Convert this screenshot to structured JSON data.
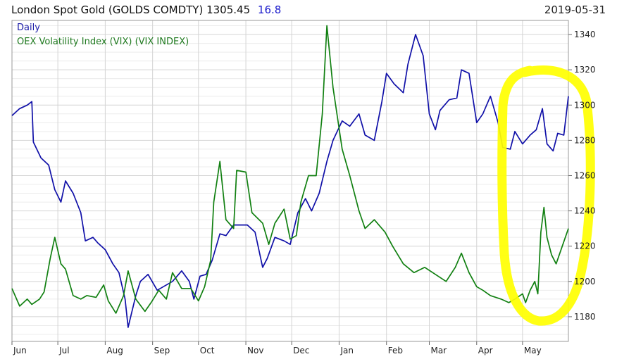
{
  "header": {
    "title": "London Spot Gold (GOLDS COMDTY)",
    "price": "1305.45",
    "change": "16.8",
    "date": "2019-05-31"
  },
  "legend": {
    "series1": "Daily",
    "series2": "OEX Volatility Index (VIX) (VIX INDEX)"
  },
  "colors": {
    "gold": "#1010a8",
    "vix": "#118011",
    "highlight": "#ffff00",
    "grid": "#d4d4d4"
  },
  "chart_data": {
    "type": "line",
    "x_tick_labels": [
      "Jun",
      "Jul",
      "Aug",
      "Sep",
      "Oct",
      "Nov",
      "Dec",
      "Jan",
      "Feb",
      "Mar",
      "Apr",
      "May"
    ],
    "x_range": [
      "2018-06-01",
      "2019-05-31"
    ],
    "y_right_ticks": [
      1180,
      1200,
      1220,
      1240,
      1260,
      1280,
      1300,
      1320,
      1340
    ],
    "ylim": [
      1166,
      1348
    ],
    "grid": true,
    "legend_position": "top-left",
    "annotation": "yellow freehand ellipse around late April–May 2019",
    "series": [
      {
        "name": "Daily",
        "color": "#1010a8",
        "points": [
          [
            "2018-06-01",
            1294
          ],
          [
            "2018-06-06",
            1298
          ],
          [
            "2018-06-11",
            1300
          ],
          [
            "2018-06-14",
            1302
          ],
          [
            "2018-06-15",
            1279
          ],
          [
            "2018-06-20",
            1270
          ],
          [
            "2018-06-25",
            1266
          ],
          [
            "2018-06-29",
            1252
          ],
          [
            "2018-07-03",
            1245
          ],
          [
            "2018-07-06",
            1257
          ],
          [
            "2018-07-11",
            1250
          ],
          [
            "2018-07-16",
            1239
          ],
          [
            "2018-07-19",
            1223
          ],
          [
            "2018-07-24",
            1225
          ],
          [
            "2018-07-27",
            1222
          ],
          [
            "2018-08-01",
            1218
          ],
          [
            "2018-08-06",
            1210
          ],
          [
            "2018-08-10",
            1205
          ],
          [
            "2018-08-14",
            1190
          ],
          [
            "2018-08-16",
            1174
          ],
          [
            "2018-08-21",
            1192
          ],
          [
            "2018-08-24",
            1200
          ],
          [
            "2018-08-29",
            1204
          ],
          [
            "2018-09-04",
            1195
          ],
          [
            "2018-09-10",
            1198
          ],
          [
            "2018-09-14",
            1200
          ],
          [
            "2018-09-20",
            1206
          ],
          [
            "2018-09-25",
            1200
          ],
          [
            "2018-09-28",
            1190
          ],
          [
            "2018-10-02",
            1203
          ],
          [
            "2018-10-06",
            1204
          ],
          [
            "2018-10-10",
            1212
          ],
          [
            "2018-10-15",
            1227
          ],
          [
            "2018-10-19",
            1226
          ],
          [
            "2018-10-24",
            1232
          ],
          [
            "2018-10-29",
            1232
          ],
          [
            "2018-11-02",
            1232
          ],
          [
            "2018-11-07",
            1228
          ],
          [
            "2018-11-12",
            1208
          ],
          [
            "2018-11-15",
            1213
          ],
          [
            "2018-11-20",
            1225
          ],
          [
            "2018-11-26",
            1223
          ],
          [
            "2018-11-30",
            1221
          ],
          [
            "2018-12-05",
            1239
          ],
          [
            "2018-12-10",
            1247
          ],
          [
            "2018-12-14",
            1240
          ],
          [
            "2018-12-19",
            1250
          ],
          [
            "2018-12-24",
            1268
          ],
          [
            "2018-12-28",
            1280
          ],
          [
            "2019-01-03",
            1291
          ],
          [
            "2019-01-08",
            1288
          ],
          [
            "2019-01-14",
            1295
          ],
          [
            "2019-01-18",
            1283
          ],
          [
            "2019-01-24",
            1280
          ],
          [
            "2019-01-29",
            1302
          ],
          [
            "2019-02-01",
            1318
          ],
          [
            "2019-02-06",
            1312
          ],
          [
            "2019-02-12",
            1307
          ],
          [
            "2019-02-15",
            1323
          ],
          [
            "2019-02-20",
            1340
          ],
          [
            "2019-02-25",
            1328
          ],
          [
            "2019-03-01",
            1295
          ],
          [
            "2019-03-05",
            1286
          ],
          [
            "2019-03-08",
            1297
          ],
          [
            "2019-03-14",
            1303
          ],
          [
            "2019-03-19",
            1304
          ],
          [
            "2019-03-22",
            1320
          ],
          [
            "2019-03-27",
            1318
          ],
          [
            "2019-04-01",
            1290
          ],
          [
            "2019-04-05",
            1295
          ],
          [
            "2019-04-10",
            1305
          ],
          [
            "2019-04-15",
            1290
          ],
          [
            "2019-04-18",
            1276
          ],
          [
            "2019-04-23",
            1275
          ],
          [
            "2019-04-26",
            1285
          ],
          [
            "2019-05-01",
            1278
          ],
          [
            "2019-05-06",
            1283
          ],
          [
            "2019-05-10",
            1286
          ],
          [
            "2019-05-14",
            1298
          ],
          [
            "2019-05-17",
            1278
          ],
          [
            "2019-05-21",
            1274
          ],
          [
            "2019-05-24",
            1284
          ],
          [
            "2019-05-28",
            1283
          ],
          [
            "2019-05-31",
            1305
          ]
        ]
      },
      {
        "name": "OEX Volatility Index (VIX) (VIX INDEX)",
        "color": "#118011",
        "points": [
          [
            "2018-06-01",
            1196
          ],
          [
            "2018-06-06",
            1186
          ],
          [
            "2018-06-11",
            1190
          ],
          [
            "2018-06-14",
            1187
          ],
          [
            "2018-06-19",
            1190
          ],
          [
            "2018-06-22",
            1194
          ],
          [
            "2018-06-26",
            1213
          ],
          [
            "2018-06-29",
            1225
          ],
          [
            "2018-07-03",
            1210
          ],
          [
            "2018-07-06",
            1207
          ],
          [
            "2018-07-11",
            1192
          ],
          [
            "2018-07-16",
            1190
          ],
          [
            "2018-07-20",
            1192
          ],
          [
            "2018-07-26",
            1191
          ],
          [
            "2018-07-31",
            1198
          ],
          [
            "2018-08-03",
            1189
          ],
          [
            "2018-08-08",
            1182
          ],
          [
            "2018-08-13",
            1192
          ],
          [
            "2018-08-16",
            1206
          ],
          [
            "2018-08-21",
            1190
          ],
          [
            "2018-08-27",
            1183
          ],
          [
            "2018-08-31",
            1188
          ],
          [
            "2018-09-05",
            1195
          ],
          [
            "2018-09-10",
            1190
          ],
          [
            "2018-09-14",
            1205
          ],
          [
            "2018-09-20",
            1196
          ],
          [
            "2018-09-26",
            1196
          ],
          [
            "2018-10-01",
            1189
          ],
          [
            "2018-10-05",
            1197
          ],
          [
            "2018-10-09",
            1212
          ],
          [
            "2018-10-11",
            1245
          ],
          [
            "2018-10-15",
            1268
          ],
          [
            "2018-10-19",
            1235
          ],
          [
            "2018-10-24",
            1230
          ],
          [
            "2018-10-26",
            1263
          ],
          [
            "2018-11-01",
            1262
          ],
          [
            "2018-11-05",
            1239
          ],
          [
            "2018-11-12",
            1233
          ],
          [
            "2018-11-16",
            1221
          ],
          [
            "2018-11-20",
            1233
          ],
          [
            "2018-11-26",
            1241
          ],
          [
            "2018-11-30",
            1224
          ],
          [
            "2018-12-04",
            1226
          ],
          [
            "2018-12-07",
            1245
          ],
          [
            "2018-12-12",
            1260
          ],
          [
            "2018-12-17",
            1260
          ],
          [
            "2018-12-21",
            1295
          ],
          [
            "2018-12-24",
            1345
          ],
          [
            "2018-12-28",
            1310
          ],
          [
            "2019-01-03",
            1275
          ],
          [
            "2019-01-08",
            1260
          ],
          [
            "2019-01-14",
            1240
          ],
          [
            "2019-01-18",
            1230
          ],
          [
            "2019-01-24",
            1235
          ],
          [
            "2019-01-31",
            1228
          ],
          [
            "2019-02-05",
            1220
          ],
          [
            "2019-02-12",
            1210
          ],
          [
            "2019-02-19",
            1205
          ],
          [
            "2019-02-26",
            1208
          ],
          [
            "2019-03-05",
            1204
          ],
          [
            "2019-03-12",
            1200
          ],
          [
            "2019-03-18",
            1208
          ],
          [
            "2019-03-22",
            1216
          ],
          [
            "2019-03-27",
            1205
          ],
          [
            "2019-04-01",
            1197
          ],
          [
            "2019-04-05",
            1195
          ],
          [
            "2019-04-10",
            1192
          ],
          [
            "2019-04-17",
            1190
          ],
          [
            "2019-04-22",
            1188
          ],
          [
            "2019-04-26",
            1190
          ],
          [
            "2019-05-01",
            1193
          ],
          [
            "2019-05-03",
            1188
          ],
          [
            "2019-05-06",
            1195
          ],
          [
            "2019-05-09",
            1200
          ],
          [
            "2019-05-11",
            1193
          ],
          [
            "2019-05-13",
            1228
          ],
          [
            "2019-05-15",
            1242
          ],
          [
            "2019-05-17",
            1225
          ],
          [
            "2019-05-20",
            1215
          ],
          [
            "2019-05-23",
            1210
          ],
          [
            "2019-05-27",
            1220
          ],
          [
            "2019-05-31",
            1230
          ]
        ]
      }
    ]
  }
}
